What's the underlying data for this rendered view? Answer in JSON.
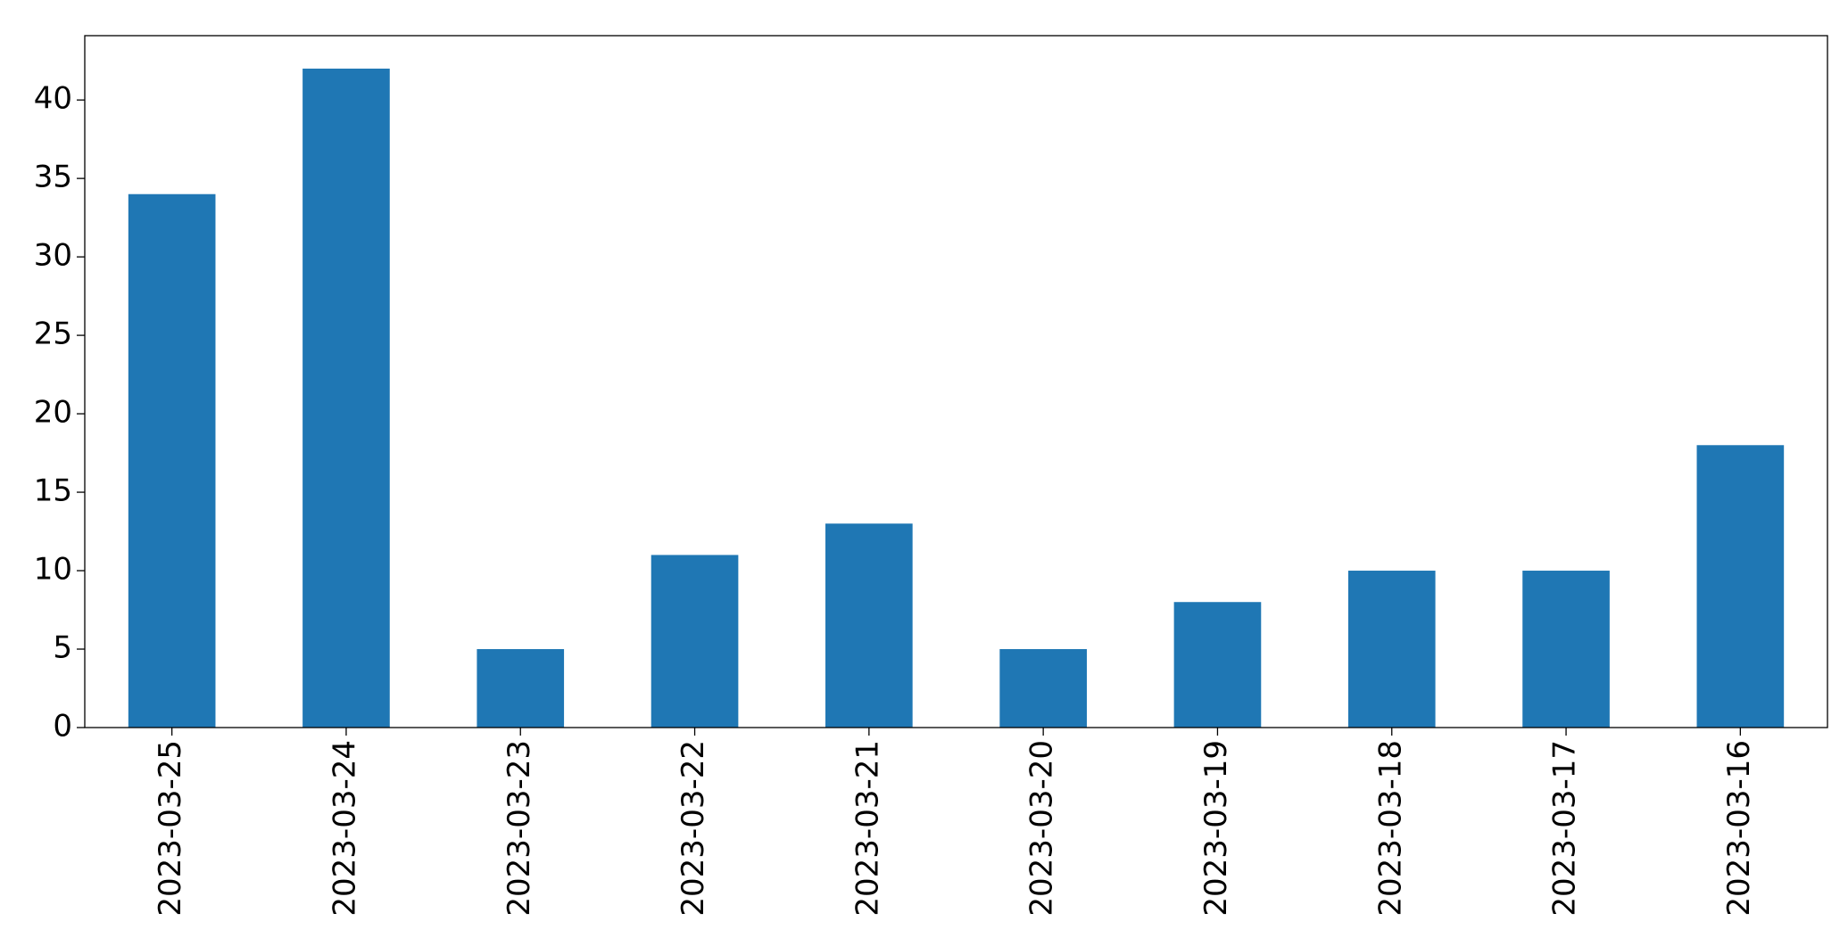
{
  "chart_data": {
    "type": "bar",
    "categories": [
      "2023-03-25",
      "2023-03-24",
      "2023-03-23",
      "2023-03-22",
      "2023-03-21",
      "2023-03-20",
      "2023-03-19",
      "2023-03-18",
      "2023-03-17",
      "2023-03-16"
    ],
    "values": [
      34,
      42,
      5,
      11,
      13,
      5,
      8,
      10,
      10,
      18
    ],
    "color": "#1f77b4",
    "ylim": [
      0,
      44.1
    ],
    "yticks": [
      0,
      5,
      10,
      15,
      20,
      25,
      30,
      35,
      40
    ],
    "grid": false
  }
}
